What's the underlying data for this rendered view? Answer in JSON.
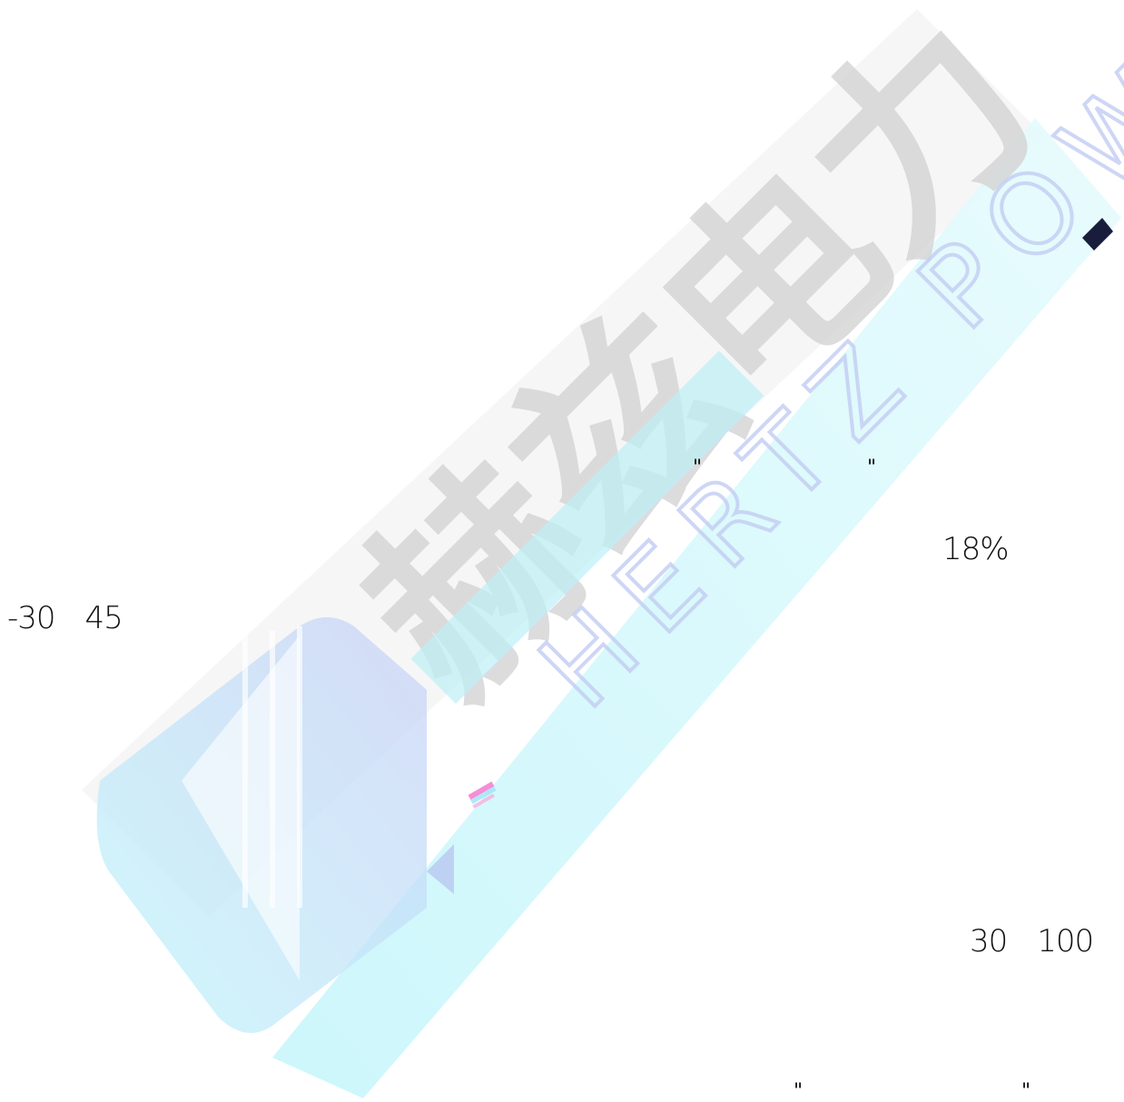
{
  "watermark": {
    "chinese_text": "赫兹电力",
    "english_text": "HERTZ POWER"
  },
  "document": {
    "fragment_1": "-30　45",
    "fragment_2": "18%",
    "fragment_3": "30　100",
    "quote_marks": {
      "top_left": "\"",
      "top_right": "\"",
      "bottom_left": "\"",
      "bottom_right": "\""
    }
  },
  "colors": {
    "watermark_grey": "#d8d8d8",
    "watermark_cyan": "#c8f4f8",
    "watermark_blue": "#a9b8f0",
    "text": "#111111"
  }
}
